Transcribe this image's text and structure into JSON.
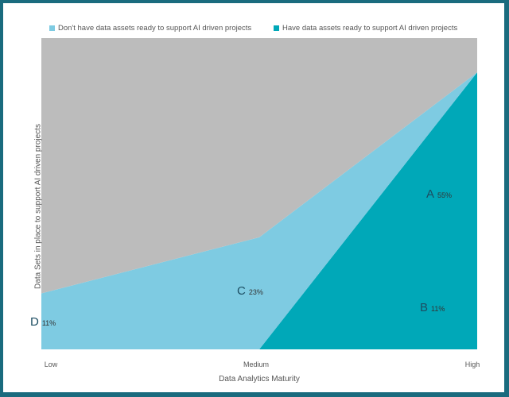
{
  "chart_data": {
    "type": "area",
    "stacked": true,
    "xlabel": "Data Analytics Maturity",
    "ylabel": "Data Sets in place to support AI driven projects",
    "categories": [
      "Low",
      "Medium",
      "High"
    ],
    "ylim": [
      0,
      100
    ],
    "legend_position": "top",
    "grid": false,
    "series": [
      {
        "name": "Have data assets ready to support AI driven projects",
        "color": "#00a8b8",
        "values": [
          0,
          0,
          89
        ]
      },
      {
        "name": "Don't have data assets ready to support AI driven projects",
        "color": "#7ecbe2",
        "values": [
          18,
          36,
          0
        ]
      },
      {
        "name": "",
        "color": "#bcbcbc",
        "values": [
          82,
          64,
          11
        ]
      }
    ],
    "annotations": [
      {
        "letter": "A",
        "text": "55%"
      },
      {
        "letter": "B",
        "text": "11%"
      },
      {
        "letter": "C",
        "text": "23%"
      },
      {
        "letter": "D",
        "text": "11%"
      }
    ]
  },
  "legend": [
    {
      "label": "Don't have data assets ready to support AI driven projects",
      "color": "#7ecbe2"
    },
    {
      "label": "Have data assets ready to support AI driven projects",
      "color": "#00a8b8"
    }
  ]
}
